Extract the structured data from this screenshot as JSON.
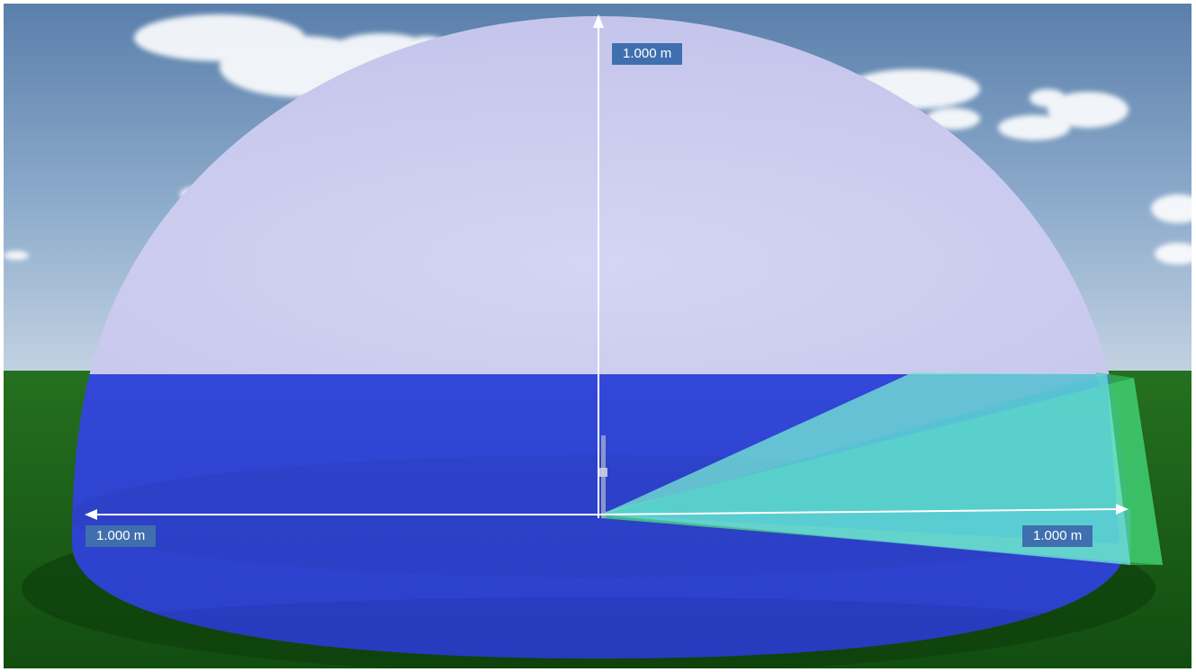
{
  "scene": {
    "dimension_labels": {
      "vertical": "1.000 m",
      "left": "1.000 m",
      "right": "1.000 m"
    },
    "colors": {
      "sky_top": "#5d82ad",
      "sky_bottom": "#b9cadc",
      "grass": "#1c6518",
      "dome_upper": "#cdcdf0",
      "dome_lower": "#2f49d4",
      "sensor_cone": "#6ee0d0",
      "sensor_cone_outer": "#4fd27a",
      "axis_arrows": "#ffffff",
      "label_background": "#3f6fae"
    }
  }
}
